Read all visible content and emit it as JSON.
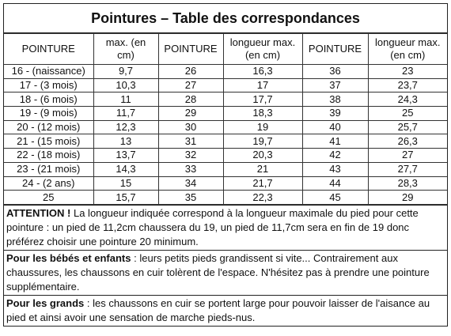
{
  "title": "Pointures – Table des correspondances",
  "table": {
    "headers": [
      "POINTURE",
      "max. (en cm)",
      "POINTURE",
      "longueur max. (en cm)",
      "POINTURE",
      "longueur max. (en cm)"
    ],
    "rows": [
      [
        "16 - (naissance)",
        "9,7",
        "26",
        "16,3",
        "36",
        "23"
      ],
      [
        "17 - (3 mois)",
        "10,3",
        "27",
        "17",
        "37",
        "23,7"
      ],
      [
        "18 - (6 mois)",
        "11",
        "28",
        "17,7",
        "38",
        "24,3"
      ],
      [
        "19 - (9 mois)",
        "11,7",
        "29",
        "18,3",
        "39",
        "25"
      ],
      [
        "20 - (12 mois)",
        "12,3",
        "30",
        "19",
        "40",
        "25,7"
      ],
      [
        "21 - (15 mois)",
        "13",
        "31",
        "19,7",
        "41",
        "26,3"
      ],
      [
        "22 - (18 mois)",
        "13,7",
        "32",
        "20,3",
        "42",
        "27"
      ],
      [
        "23 - (21 mois)",
        "14,3",
        "33",
        "21",
        "43",
        "27,7"
      ],
      [
        "24 - (2 ans)",
        "15",
        "34",
        "21,7",
        "44",
        "28,3"
      ],
      [
        "25",
        "15,7",
        "35",
        "22,3",
        "45",
        "29"
      ]
    ]
  },
  "notes": [
    {
      "lead": "ATTENTION !",
      "text": "La longueur indiquée correspond à la longueur maximale du pied pour cette pointure : un pied de 11,2cm chaussera du 19, un pied de 11,7cm sera en fin de 19 donc préférez choisir une pointure 20 minimum."
    },
    {
      "lead": "Pour les bébés et enfants",
      "text": ": leurs petits pieds grandissent si vite... Contrairement aux chaussures, les chaussons en cuir tolèrent de l'espace. N'hésitez pas à prendre une pointure supplémentaire."
    },
    {
      "lead": "Pour les grands",
      "text": ": les chaussons en cuir se portent large pour pouvoir laisser de l'aisance au pied et ainsi avoir une sensation de marche pieds-nus."
    }
  ]
}
